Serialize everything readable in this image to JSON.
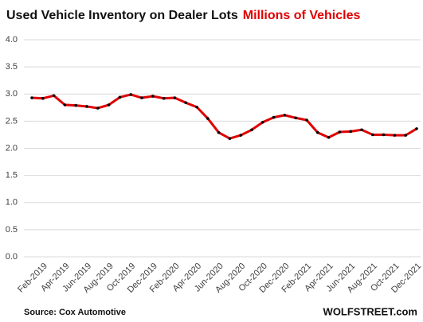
{
  "chart_data": {
    "type": "line",
    "title": "Used Vehicle Inventory on Dealer Lots",
    "subtitle": "Millions of Vehicles",
    "source": "Source: Cox Automotive",
    "credit": "WOLFSTREET.com",
    "categories": [
      null,
      "Feb-2019",
      null,
      "Apr-2019",
      null,
      "Jun-2019",
      null,
      "Aug-2019",
      null,
      "Oct-2019",
      null,
      "Dec-2019",
      null,
      "Feb-2020",
      null,
      "Apr-2020",
      null,
      "Jun-2020",
      null,
      "Aug-2020",
      null,
      "Oct-2020",
      null,
      "Dec-2020",
      null,
      "Feb-2021",
      null,
      "Apr-2021",
      null,
      "Jun-2021",
      null,
      "Aug-2021",
      null,
      "Oct-2021",
      null,
      "Dec-2021"
    ],
    "series": [
      {
        "name": "Used Vehicle Inventory",
        "color": "#e00000",
        "marker_color": "#000000",
        "values": [
          2.93,
          2.92,
          2.97,
          2.8,
          2.79,
          2.77,
          2.74,
          2.8,
          2.94,
          2.99,
          2.93,
          2.96,
          2.92,
          2.93,
          2.84,
          2.76,
          2.55,
          2.29,
          2.18,
          2.24,
          2.34,
          2.48,
          2.57,
          2.61,
          2.56,
          2.52,
          2.29,
          2.2,
          2.3,
          2.31,
          2.34,
          2.25,
          2.25,
          2.24,
          2.24,
          2.36
        ]
      }
    ],
    "ylim": [
      0,
      4
    ],
    "yticks": [
      {
        "value": 0,
        "label": "0.0"
      },
      {
        "value": 0.5,
        "label": "0.5"
      },
      {
        "value": 1,
        "label": "1.0"
      },
      {
        "value": 1.5,
        "label": "1.5"
      },
      {
        "value": 2,
        "label": "2.0"
      },
      {
        "value": 2.5,
        "label": "2.5"
      },
      {
        "value": 3,
        "label": "3.0"
      },
      {
        "value": 3.5,
        "label": "3.5"
      },
      {
        "value": 4,
        "label": "4.0"
      }
    ],
    "grid": true
  }
}
